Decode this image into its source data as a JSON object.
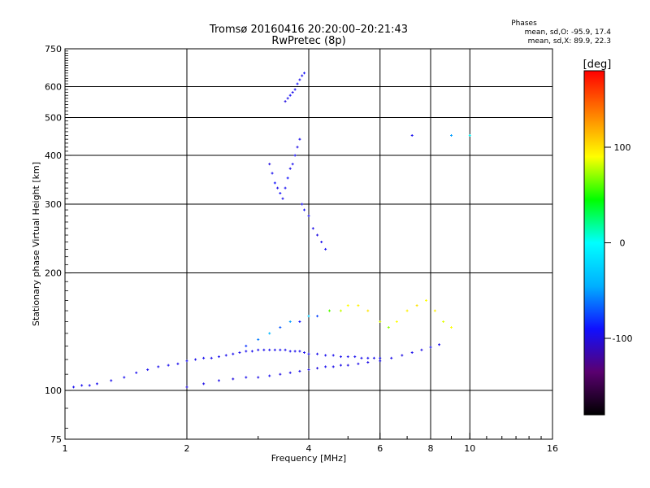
{
  "chart_data": {
    "type": "scatter",
    "title": "Tromsø 20160416 20:20:00–20:21:43",
    "subtitle": "RwPretec (8p)",
    "xlabel": "Frequency [MHz]",
    "ylabel": "Stationary phase Virtual Height [km]",
    "xscale": "log",
    "yscale": "log",
    "xlim": [
      1,
      16
    ],
    "ylim": [
      75,
      750
    ],
    "grid": true,
    "x_ticks": [
      1,
      2,
      4,
      6,
      8,
      10,
      16
    ],
    "x_tick_labels": [
      "1",
      "2",
      "4",
      "6",
      "8",
      "10",
      "16"
    ],
    "y_ticks": [
      75,
      100,
      200,
      300,
      400,
      500,
      600,
      750
    ],
    "y_tick_labels": [
      "75",
      "100",
      "200",
      "300",
      "400",
      "500",
      "600",
      "750"
    ],
    "phase_box": {
      "heading": "Phases",
      "line_o": "mean, sd,O: -95.9, 17.4",
      "line_x": "mean, sd,X:  89.9, 22.3"
    },
    "colorbar": {
      "label": "[deg]",
      "ticks": [
        100,
        0,
        -100
      ],
      "tick_labels": [
        "100",
        "0",
        "-100"
      ],
      "range": [
        -180,
        180
      ],
      "colors": [
        "#000000",
        "#5a0070",
        "#1010ff",
        "#00b0ff",
        "#00ffff",
        "#00ff00",
        "#ffff00",
        "#ff8000",
        "#ff0000"
      ]
    },
    "series": [
      {
        "x": [
          1.05,
          1.1,
          1.15,
          1.2,
          1.3,
          1.4,
          1.5,
          1.6,
          1.7,
          1.8,
          1.9,
          2.0,
          2.1,
          2.2,
          2.3,
          2.4,
          2.5,
          2.6,
          2.7,
          2.8,
          2.9,
          3.0,
          3.1,
          3.2,
          3.3,
          3.4,
          3.5,
          3.6,
          3.7,
          3.8,
          3.9,
          4.0,
          4.2,
          4.4,
          4.6,
          4.8,
          5.0,
          5.2,
          5.4,
          5.6,
          5.8,
          6.0
        ],
        "y": [
          102,
          103,
          103,
          104,
          106,
          108,
          111,
          113,
          115,
          116,
          117,
          119,
          120,
          121,
          121,
          122,
          123,
          124,
          125,
          126,
          126,
          127,
          127,
          127,
          127,
          127,
          127,
          126,
          126,
          126,
          125,
          124,
          124,
          123,
          123,
          122,
          122,
          122,
          121,
          121,
          121,
          121
        ],
        "phase": [
          -95,
          -95,
          -96,
          -95,
          -96,
          -95,
          -96,
          -95,
          -96,
          -95,
          -96,
          -95,
          -96,
          -95,
          -96,
          -95,
          -96,
          -95,
          -96,
          -95,
          -96,
          -95,
          -96,
          -95,
          -96,
          -95,
          -96,
          -95,
          -96,
          -95,
          -96,
          -95,
          -96,
          -95,
          -96,
          -95,
          -96,
          -95,
          -96,
          -95,
          -96,
          -95
        ]
      },
      {
        "x": [
          2.0,
          2.2,
          2.4,
          2.6,
          2.8,
          3.0,
          3.2,
          3.4,
          3.6,
          3.8,
          4.0,
          4.2,
          4.4,
          4.6,
          4.8,
          5.0,
          5.3,
          5.6,
          6.0,
          6.4,
          6.8,
          7.2,
          7.6,
          8.0,
          8.4
        ],
        "y": [
          102,
          104,
          106,
          107,
          108,
          108,
          109,
          110,
          111,
          112,
          113,
          114,
          115,
          115,
          116,
          116,
          117,
          118,
          119,
          121,
          123,
          125,
          127,
          129,
          131
        ],
        "phase": [
          -100,
          -98,
          -97,
          -100,
          -96,
          -98,
          -95,
          -99,
          -97,
          -96,
          -98,
          -100,
          -95,
          -97,
          -96,
          -99,
          -97,
          -98,
          -95,
          -97,
          -99,
          -96,
          -98,
          -95,
          -97
        ]
      },
      {
        "x": [
          2.8,
          3.0,
          3.2,
          3.4,
          3.6,
          3.8,
          4.0,
          4.2,
          4.5,
          4.8,
          5.0,
          5.3,
          5.6,
          6.0,
          6.3,
          6.6,
          7.0,
          7.4,
          7.8,
          8.2,
          8.6,
          9.0
        ],
        "y": [
          130,
          135,
          140,
          145,
          150,
          150,
          155,
          155,
          160,
          160,
          165,
          165,
          160,
          150,
          145,
          150,
          160,
          165,
          170,
          160,
          150,
          145
        ],
        "phase": [
          -80,
          -60,
          -40,
          -70,
          -50,
          -90,
          -30,
          -75,
          60,
          80,
          90,
          95,
          100,
          85,
          70,
          90,
          95,
          100,
          90,
          95,
          85,
          90
        ]
      },
      {
        "x": [
          3.2,
          3.25,
          3.3,
          3.35,
          3.4,
          3.45,
          3.5,
          3.55,
          3.6,
          3.65,
          3.7,
          3.75,
          3.8,
          3.85,
          3.9,
          4.0,
          4.1,
          4.2,
          4.3,
          4.4
        ],
        "y": [
          380,
          360,
          340,
          330,
          320,
          310,
          330,
          350,
          370,
          380,
          400,
          420,
          440,
          300,
          290,
          280,
          260,
          250,
          240,
          230
        ],
        "phase": [
          -100,
          -95,
          -90,
          -98,
          -92,
          -96,
          -94,
          -90,
          -97,
          -95,
          -93,
          -98,
          -96,
          -94,
          -92,
          -95,
          -97,
          -99,
          -96,
          -94
        ]
      },
      {
        "x": [
          3.5,
          3.55,
          3.6,
          3.65,
          3.7,
          3.75,
          3.8,
          3.85,
          3.9
        ],
        "y": [
          550,
          560,
          570,
          580,
          590,
          610,
          625,
          640,
          650
        ],
        "phase": [
          -100,
          -96,
          -92,
          -98,
          -94,
          -90,
          -97,
          -95,
          -93
        ]
      },
      {
        "x": [
          7.2,
          9.0,
          10.0
        ],
        "y": [
          450,
          450,
          450
        ],
        "phase": [
          -95,
          -50,
          0
        ]
      }
    ]
  }
}
